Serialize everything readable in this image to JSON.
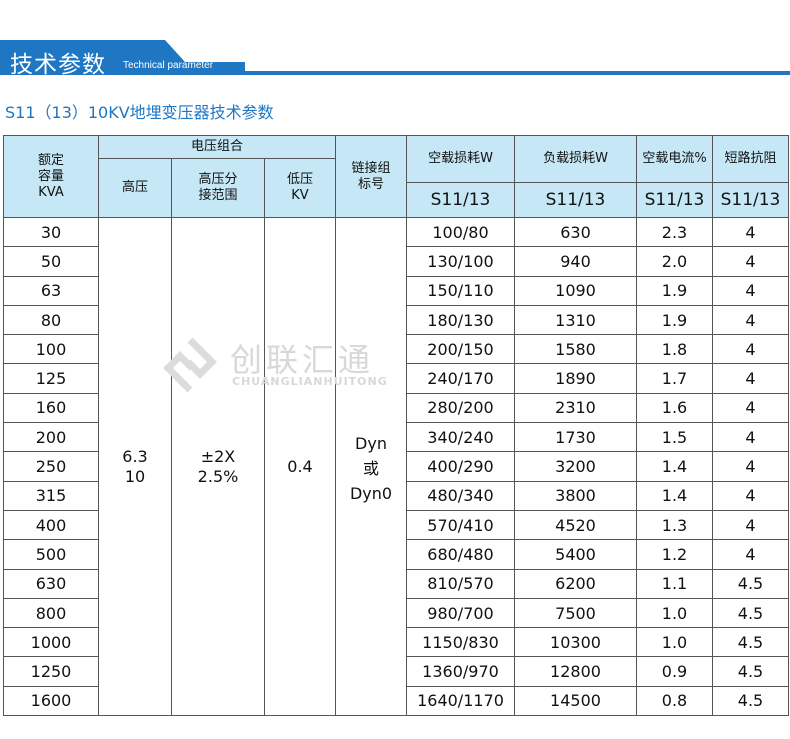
{
  "banner": {
    "title": "技术参数",
    "subtitle": "Technical parameter",
    "color": "#1f76c2"
  },
  "subtitle": "S11（13）10KV地埋变压器技术参数",
  "watermark": {
    "cn": "创联汇通",
    "en": "CHUANGLIANHUITONG"
  },
  "table": {
    "headers": {
      "capacity": "额定\n容量\nKVA",
      "voltage_group": "电压组合",
      "high_voltage": "高压",
      "tap_range": "高压分\n接范围",
      "low_voltage": "低压\nKV",
      "connection": "链接组\n标号",
      "no_load_loss": "空载损耗W",
      "load_loss": "负载损耗W",
      "no_load_current": "空载电流%",
      "short_circuit": "短路抗阻",
      "model": "S11/13"
    },
    "merged": {
      "high_voltage": "6.3\n10",
      "tap_range": "±2X\n2.5%",
      "low_voltage": "0.4",
      "connection": "Dyn\n或\nDyn0"
    },
    "rows": [
      [
        "30",
        "100/80",
        "630",
        "2.3",
        "4"
      ],
      [
        "50",
        "130/100",
        "940",
        "2.0",
        "4"
      ],
      [
        "63",
        "150/110",
        "1090",
        "1.9",
        "4"
      ],
      [
        "80",
        "180/130",
        "1310",
        "1.9",
        "4"
      ],
      [
        "100",
        "200/150",
        "1580",
        "1.8",
        "4"
      ],
      [
        "125",
        "240/170",
        "1890",
        "1.7",
        "4"
      ],
      [
        "160",
        "280/200",
        "2310",
        "1.6",
        "4"
      ],
      [
        "200",
        "340/240",
        "1730",
        "1.5",
        "4"
      ],
      [
        "250",
        "400/290",
        "3200",
        "1.4",
        "4"
      ],
      [
        "315",
        "480/340",
        "3800",
        "1.4",
        "4"
      ],
      [
        "400",
        "570/410",
        "4520",
        "1.3",
        "4"
      ],
      [
        "500",
        "680/480",
        "5400",
        "1.2",
        "4"
      ],
      [
        "630",
        "810/570",
        "6200",
        "1.1",
        "4.5"
      ],
      [
        "800",
        "980/700",
        "7500",
        "1.0",
        "4.5"
      ],
      [
        "1000",
        "1150/830",
        "10300",
        "1.0",
        "4.5"
      ],
      [
        "1250",
        "1360/970",
        "12800",
        "0.9",
        "4.5"
      ],
      [
        "1600",
        "1640/1170",
        "14500",
        "0.8",
        "4.5"
      ]
    ],
    "header_bg": "#c6e7f6"
  }
}
